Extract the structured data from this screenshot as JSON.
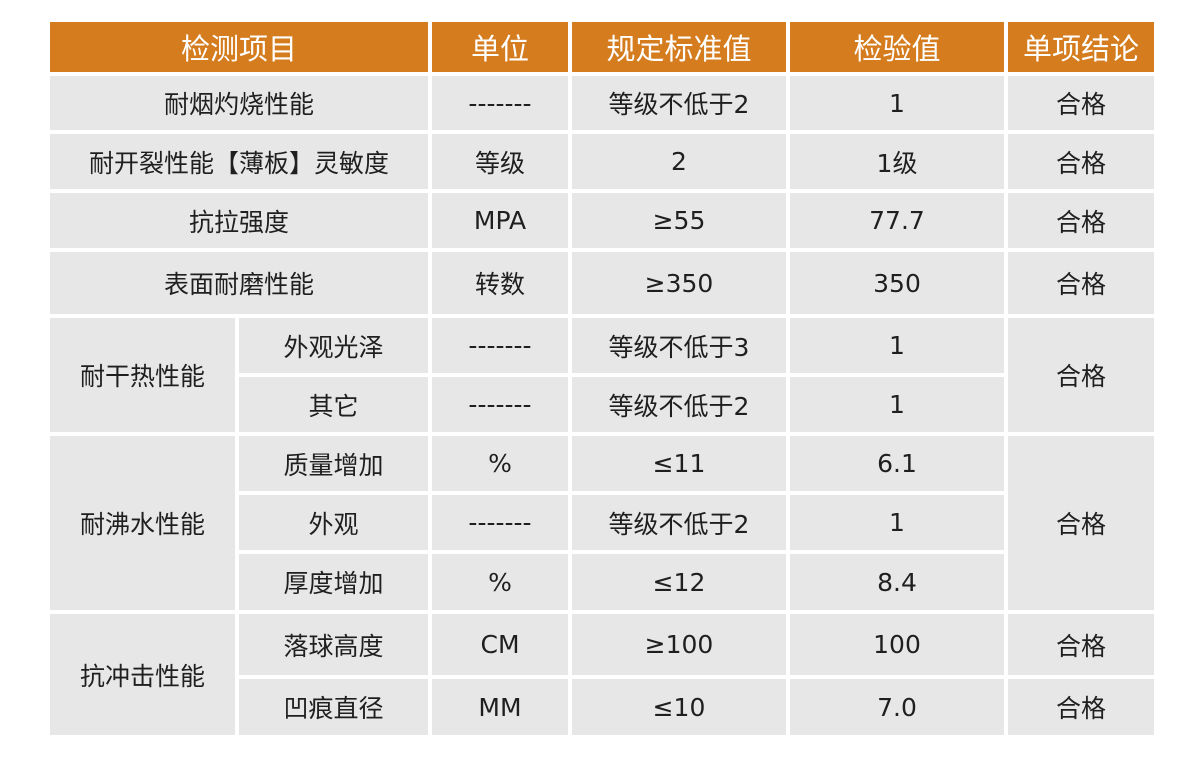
{
  "table": {
    "headers": [
      "检测项目",
      "单位",
      "规定标准值",
      "检验值",
      "单项结论"
    ],
    "rows": {
      "r1": {
        "item": "耐烟灼烧性能",
        "unit": "-------",
        "standard": "等级不低于2",
        "value": "1",
        "result": "合格"
      },
      "r2": {
        "item": "耐开裂性能【薄板】灵敏度",
        "unit": "等级",
        "standard": "2",
        "value": "1级",
        "result": "合格"
      },
      "r3": {
        "item": "抗拉强度",
        "unit": "MPA",
        "standard": "≥55",
        "value": "77.7",
        "result": "合格"
      },
      "r4": {
        "item": "表面耐磨性能",
        "unit": "转数",
        "standard": "≥350",
        "value": "350",
        "result": "合格"
      }
    },
    "groups": {
      "dry_heat": {
        "label": "耐干热性能",
        "result": "合格",
        "subs": [
          {
            "item": "外观光泽",
            "unit": "-------",
            "standard": "等级不低于3",
            "value": "1"
          },
          {
            "item": "其它",
            "unit": "-------",
            "standard": "等级不低于2",
            "value": "1"
          }
        ]
      },
      "boiling": {
        "label": "耐沸水性能",
        "result": "合格",
        "subs": [
          {
            "item": "质量增加",
            "unit": "%",
            "standard": "≤11",
            "value": "6.1"
          },
          {
            "item": "外观",
            "unit": "-------",
            "standard": "等级不低于2",
            "value": "1"
          },
          {
            "item": "厚度增加",
            "unit": "%",
            "standard": "≤12",
            "value": "8.4"
          }
        ]
      },
      "impact": {
        "label": "抗冲击性能",
        "subs": [
          {
            "item": "落球高度",
            "unit": "CM",
            "standard": "≥100",
            "value": "100",
            "result": "合格"
          },
          {
            "item": "凹痕直径",
            "unit": "MM",
            "standard": "≤10",
            "value": "7.0",
            "result": "合格"
          }
        ]
      }
    }
  }
}
